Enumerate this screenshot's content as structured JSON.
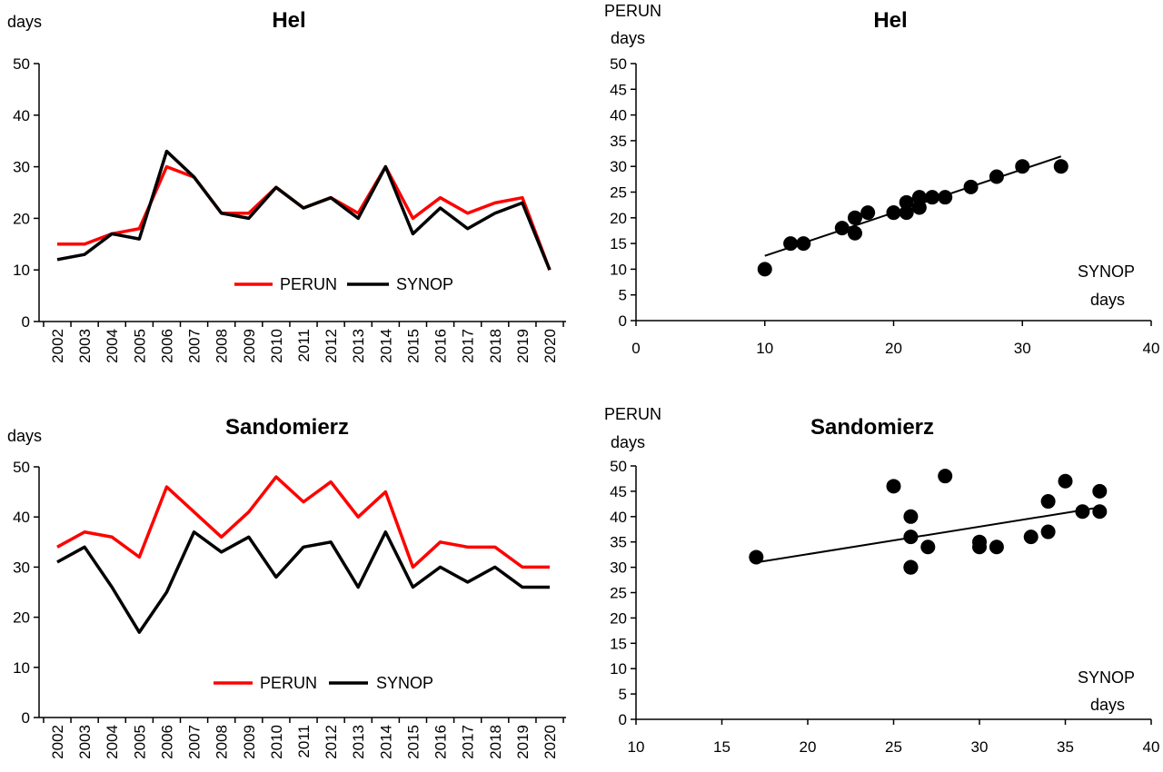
{
  "chart_data": [
    {
      "type": "line",
      "title": "Hel",
      "ylabel": "days",
      "ylim": [
        0,
        50
      ],
      "yticks": [
        0,
        10,
        20,
        30,
        40,
        50
      ],
      "categories": [
        "2002",
        "2003",
        "2004",
        "2005",
        "2006",
        "2007",
        "2008",
        "2009",
        "2010",
        "2011",
        "2012",
        "2013",
        "2014",
        "2015",
        "2016",
        "2017",
        "2018",
        "2019",
        "2020"
      ],
      "legend": "bottom-center",
      "series": [
        {
          "name": "PERUN",
          "color": "#ff0000",
          "values": [
            15,
            15,
            17,
            18,
            30,
            28,
            21,
            21,
            26,
            22,
            24,
            21,
            30,
            20,
            24,
            21,
            23,
            24,
            10
          ]
        },
        {
          "name": "SYNOP",
          "color": "#000000",
          "values": [
            12,
            13,
            17,
            16,
            33,
            28,
            21,
            20,
            26,
            22,
            24,
            20,
            30,
            17,
            22,
            18,
            21,
            23,
            10
          ]
        }
      ]
    },
    {
      "type": "scatter",
      "title": "Hel",
      "xlabel": [
        "SYNOP",
        "days"
      ],
      "ylabel": [
        "PERUN",
        "days"
      ],
      "xlim": [
        0,
        40
      ],
      "xticks": [
        0,
        10,
        20,
        30,
        40
      ],
      "ylim": [
        0,
        50
      ],
      "yticks": [
        0,
        5,
        10,
        15,
        20,
        25,
        30,
        35,
        40,
        45,
        50
      ],
      "trendline": "linear",
      "x": [
        12,
        13,
        17,
        16,
        33,
        28,
        21,
        20,
        26,
        22,
        24,
        20,
        30,
        17,
        22,
        18,
        21,
        23,
        10
      ],
      "y": [
        15,
        15,
        17,
        18,
        30,
        28,
        21,
        21,
        26,
        22,
        24,
        21,
        30,
        20,
        24,
        21,
        23,
        24,
        10
      ]
    },
    {
      "type": "line",
      "title": "Sandomierz",
      "ylabel": "days",
      "ylim": [
        0,
        50
      ],
      "yticks": [
        0,
        10,
        20,
        30,
        40,
        50
      ],
      "categories": [
        "2002",
        "2003",
        "2004",
        "2005",
        "2006",
        "2007",
        "2008",
        "2009",
        "2010",
        "2011",
        "2012",
        "2013",
        "2014",
        "2015",
        "2016",
        "2017",
        "2018",
        "2019",
        "2020"
      ],
      "legend": "bottom-center",
      "series": [
        {
          "name": "PERUN",
          "color": "#ff0000",
          "values": [
            34,
            37,
            36,
            32,
            46,
            41,
            36,
            41,
            48,
            43,
            47,
            40,
            45,
            30,
            35,
            34,
            34,
            30,
            30
          ]
        },
        {
          "name": "SYNOP",
          "color": "#000000",
          "values": [
            31,
            34,
            26,
            17,
            25,
            37,
            33,
            36,
            28,
            34,
            35,
            26,
            37,
            26,
            30,
            27,
            30,
            26,
            26
          ]
        }
      ]
    },
    {
      "type": "scatter",
      "title": "Sandomierz",
      "xlabel": [
        "SYNOP",
        "days"
      ],
      "ylabel": [
        "PERUN",
        "days"
      ],
      "xlim": [
        10,
        40
      ],
      "xticks": [
        10,
        15,
        20,
        25,
        30,
        35,
        40
      ],
      "ylim": [
        0,
        50
      ],
      "yticks": [
        0,
        5,
        10,
        15,
        20,
        25,
        30,
        35,
        40,
        45,
        50
      ],
      "trendline": "linear",
      "x": [
        31,
        34,
        26,
        17,
        25,
        37,
        33,
        36,
        28,
        34,
        35,
        26,
        37,
        26,
        30,
        27,
        30,
        26,
        26
      ],
      "y": [
        34,
        37,
        36,
        32,
        46,
        41,
        36,
        41,
        48,
        43,
        47,
        40,
        45,
        30,
        35,
        34,
        34,
        30,
        30
      ]
    }
  ]
}
